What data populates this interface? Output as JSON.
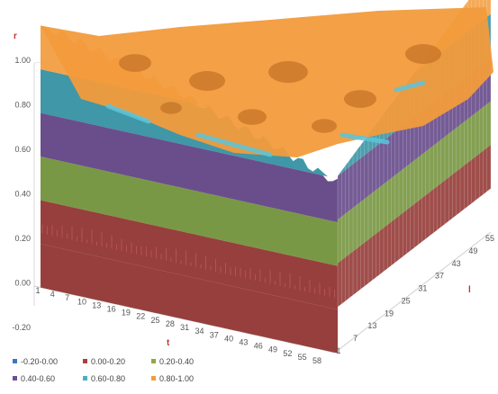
{
  "chart_data": {
    "type": "surface",
    "title": "",
    "axes": {
      "vertical": {
        "label": "r",
        "ticks": [
          "1.00",
          "0.80",
          "0.60",
          "0.40",
          "0.20",
          "0.00",
          "-0.20"
        ],
        "range": [
          -0.2,
          1.0
        ]
      },
      "t": {
        "label": "t",
        "ticks": [
          "1",
          "4",
          "7",
          "10",
          "13",
          "16",
          "19",
          "22",
          "25",
          "28",
          "31",
          "34",
          "37",
          "40",
          "43",
          "46",
          "49",
          "52",
          "55",
          "58"
        ]
      },
      "l": {
        "label": "l",
        "ticks": [
          "1",
          "7",
          "13",
          "19",
          "25",
          "31",
          "37",
          "43",
          "49",
          "55"
        ]
      }
    },
    "legend": {
      "position": "bottom",
      "entries": [
        {
          "label": "-0.20-0.00",
          "color": "#4472c4"
        },
        {
          "label": "0.00-0.20",
          "color": "#a8413e"
        },
        {
          "label": "0.20-0.40",
          "color": "#8aa84a"
        },
        {
          "label": "0.40-0.60",
          "color": "#6f4f93"
        },
        {
          "label": "0.60-0.80",
          "color": "#4aaec4"
        },
        {
          "label": "0.80-1.00",
          "color": "#f29b3c"
        }
      ]
    },
    "surface_description_bands": [
      {
        "range": "0.80-1.00",
        "color": "#f29b3c"
      },
      {
        "range": "0.60-0.80",
        "color": "#2f8ea0"
      },
      {
        "range": "0.40-0.60",
        "color": "#5d3f82"
      },
      {
        "range": "0.20-0.40",
        "color": "#6e8f35"
      },
      {
        "range": "0.00-0.20",
        "color": "#8e2f2c"
      }
    ]
  }
}
